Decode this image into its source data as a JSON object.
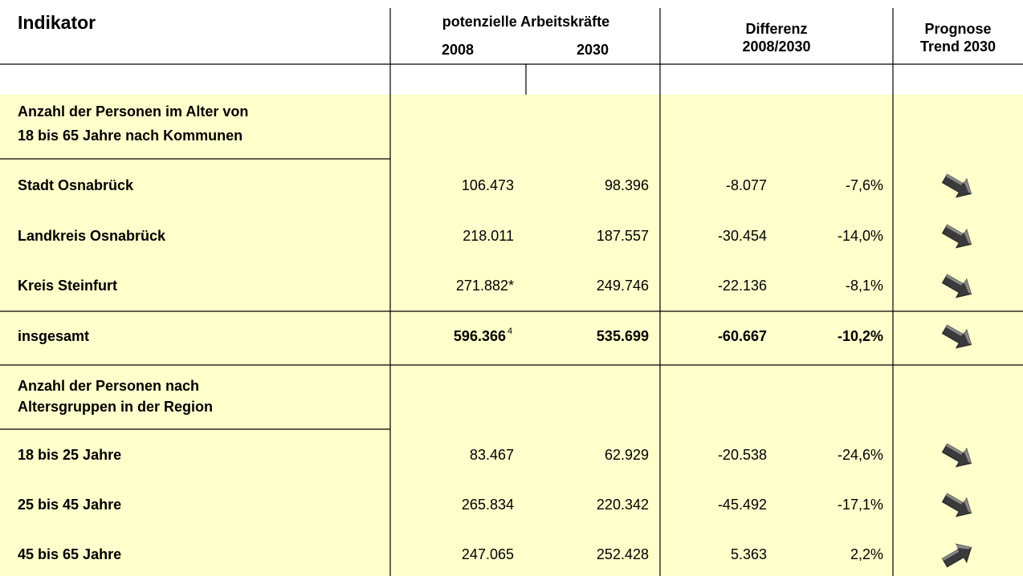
{
  "header": {
    "indikator": "Indikator",
    "group": "potenzielle Arbeitskräfte",
    "year_a": "2008",
    "year_b": "2030",
    "diff": "Differenz",
    "diff_years": "2008/2030",
    "prognose": "Prognose",
    "trend": "Trend 2030"
  },
  "sections": [
    {
      "title_lines": [
        "Anzahl der Personen im Alter von",
        "18 bis 65 Jahre nach Kommunen"
      ],
      "rows": [
        [
          "Stadt Osnabrück",
          "106.473",
          "98.396",
          "-8.077",
          "-7,6%"
        ],
        [
          "Landkreis Osnabrück",
          "218.011",
          "187.557",
          "-30.454",
          "-14,0%"
        ],
        [
          "Kreis Steinfurt",
          "271.882*",
          "249.746",
          "-22.136",
          "-8,1%"
        ]
      ]
    },
    {
      "title_lines": [
        "Anzahl der Personen nach",
        "Altersgruppen in der Region"
      ],
      "rows": [
        [
          "18 bis 25 Jahre",
          "83.467",
          "62.929",
          "-20.538",
          "-24,6%"
        ],
        [
          "25 bis 45 Jahre",
          "265.834",
          "220.342",
          "-45.492",
          "-17,1%"
        ],
        [
          "45 bis 65 Jahre",
          "247.065",
          "252.428",
          "5.363",
          "2,2%"
        ]
      ]
    }
  ],
  "total": {
    "label": "insgesamt",
    "a": "596.366",
    "note": "4",
    "b": "535.699",
    "diff": "-60.667",
    "pct": "-10,2%"
  }
}
